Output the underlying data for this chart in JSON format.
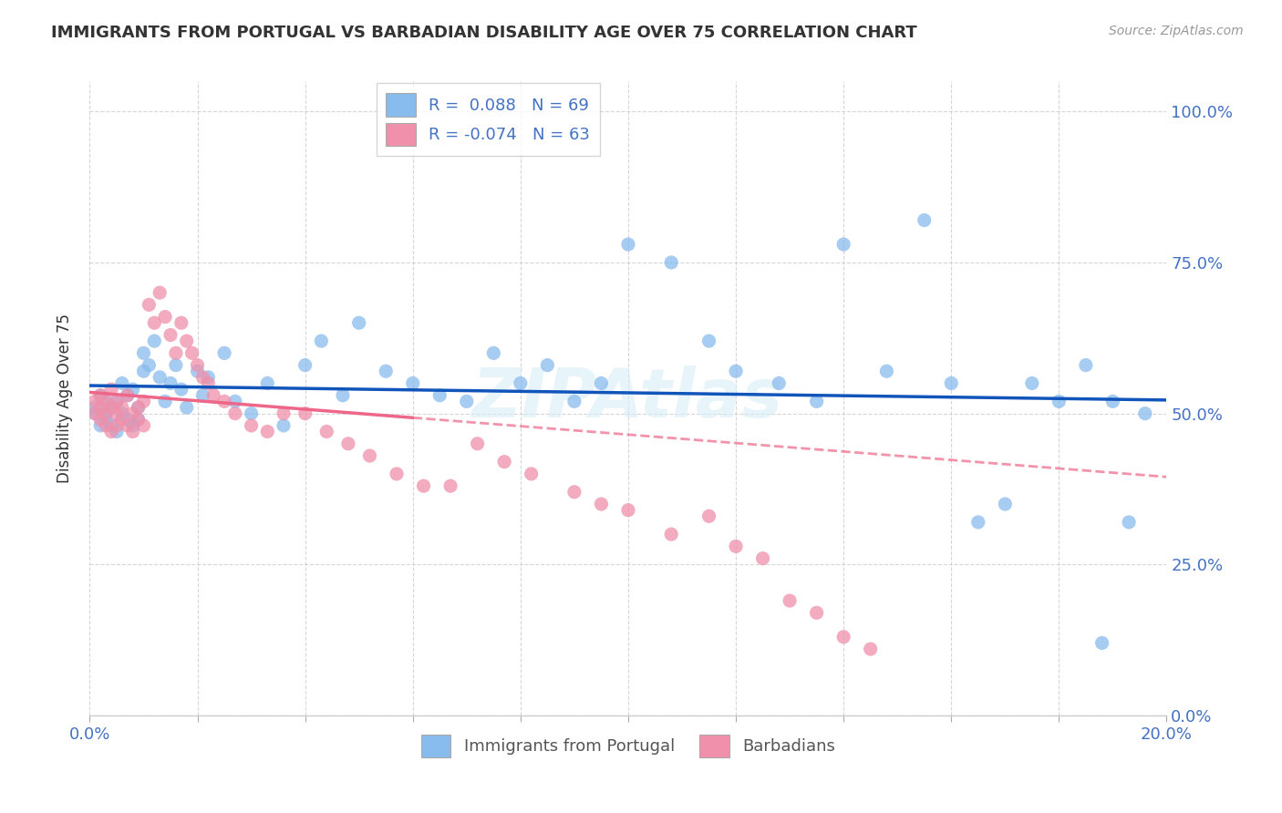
{
  "title": "IMMIGRANTS FROM PORTUGAL VS BARBADIAN DISABILITY AGE OVER 75 CORRELATION CHART",
  "source": "Source: ZipAtlas.com",
  "ylabel": "Disability Age Over 75",
  "legend_top_labels": [
    "R =  0.088   N = 69",
    "R = -0.074   N = 63"
  ],
  "legend_bottom": [
    "Immigrants from Portugal",
    "Barbadians"
  ],
  "blue_color": "#88bbee",
  "pink_color": "#f090aa",
  "blue_line_color": "#1155bb",
  "pink_line_color": "#ee6688",
  "watermark": "ZIPAtlas",
  "x_min": 0.0,
  "x_max": 0.2,
  "y_min": 0.0,
  "y_max": 1.05,
  "background_color": "#ffffff",
  "blue_scatter_x": [
    0.001,
    0.001,
    0.002,
    0.002,
    0.003,
    0.003,
    0.003,
    0.004,
    0.004,
    0.005,
    0.005,
    0.006,
    0.006,
    0.007,
    0.007,
    0.008,
    0.008,
    0.009,
    0.009,
    0.01,
    0.01,
    0.011,
    0.012,
    0.013,
    0.014,
    0.015,
    0.016,
    0.017,
    0.018,
    0.02,
    0.021,
    0.022,
    0.025,
    0.027,
    0.03,
    0.033,
    0.036,
    0.04,
    0.043,
    0.047,
    0.05,
    0.055,
    0.06,
    0.065,
    0.07,
    0.075,
    0.08,
    0.085,
    0.09,
    0.095,
    0.1,
    0.108,
    0.115,
    0.12,
    0.128,
    0.135,
    0.14,
    0.148,
    0.155,
    0.16,
    0.165,
    0.17,
    0.175,
    0.18,
    0.185,
    0.188,
    0.19,
    0.193,
    0.196
  ],
  "blue_scatter_y": [
    0.5,
    0.51,
    0.48,
    0.53,
    0.49,
    0.5,
    0.52,
    0.48,
    0.51,
    0.47,
    0.52,
    0.5,
    0.55,
    0.49,
    0.53,
    0.48,
    0.54,
    0.51,
    0.49,
    0.6,
    0.57,
    0.58,
    0.62,
    0.56,
    0.52,
    0.55,
    0.58,
    0.54,
    0.51,
    0.57,
    0.53,
    0.56,
    0.6,
    0.52,
    0.5,
    0.55,
    0.48,
    0.58,
    0.62,
    0.53,
    0.65,
    0.57,
    0.55,
    0.53,
    0.52,
    0.6,
    0.55,
    0.58,
    0.52,
    0.55,
    0.78,
    0.75,
    0.62,
    0.57,
    0.55,
    0.52,
    0.78,
    0.57,
    0.82,
    0.55,
    0.32,
    0.35,
    0.55,
    0.52,
    0.58,
    0.12,
    0.52,
    0.32,
    0.5
  ],
  "pink_scatter_x": [
    0.001,
    0.001,
    0.002,
    0.002,
    0.002,
    0.003,
    0.003,
    0.003,
    0.004,
    0.004,
    0.004,
    0.005,
    0.005,
    0.005,
    0.006,
    0.006,
    0.007,
    0.007,
    0.008,
    0.008,
    0.009,
    0.009,
    0.01,
    0.01,
    0.011,
    0.012,
    0.013,
    0.014,
    0.015,
    0.016,
    0.017,
    0.018,
    0.019,
    0.02,
    0.021,
    0.022,
    0.023,
    0.025,
    0.027,
    0.03,
    0.033,
    0.036,
    0.04,
    0.044,
    0.048,
    0.052,
    0.057,
    0.062,
    0.067,
    0.072,
    0.077,
    0.082,
    0.09,
    0.095,
    0.1,
    0.108,
    0.115,
    0.12,
    0.125,
    0.13,
    0.135,
    0.14,
    0.145
  ],
  "pink_scatter_y": [
    0.5,
    0.52,
    0.49,
    0.51,
    0.53,
    0.48,
    0.5,
    0.52,
    0.47,
    0.51,
    0.54,
    0.5,
    0.48,
    0.52,
    0.49,
    0.51,
    0.48,
    0.53,
    0.47,
    0.5,
    0.49,
    0.51,
    0.48,
    0.52,
    0.68,
    0.65,
    0.7,
    0.66,
    0.63,
    0.6,
    0.65,
    0.62,
    0.6,
    0.58,
    0.56,
    0.55,
    0.53,
    0.52,
    0.5,
    0.48,
    0.47,
    0.5,
    0.5,
    0.47,
    0.45,
    0.43,
    0.4,
    0.38,
    0.38,
    0.45,
    0.42,
    0.4,
    0.37,
    0.35,
    0.34,
    0.3,
    0.33,
    0.28,
    0.26,
    0.19,
    0.17,
    0.13,
    0.11
  ]
}
